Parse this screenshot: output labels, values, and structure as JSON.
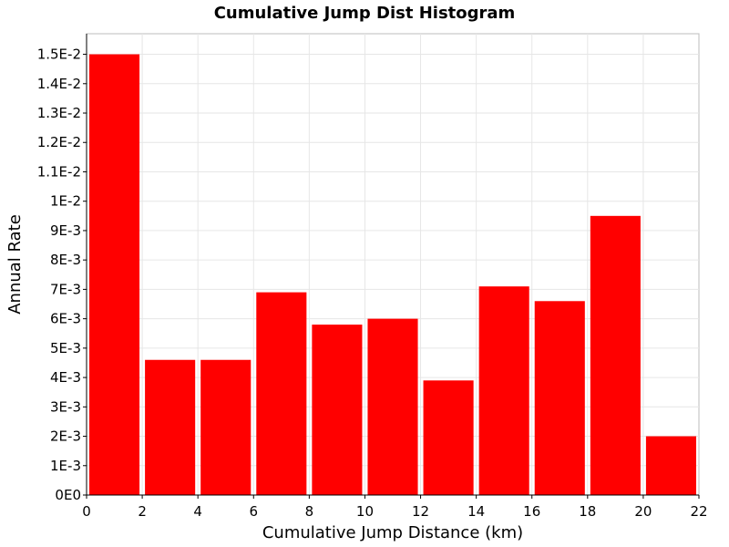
{
  "chart_data": {
    "type": "bar",
    "title": "Cumulative Jump Dist Histogram",
    "xlabel": "Cumulative Jump Distance (km)",
    "ylabel": "Annual Rate",
    "bin_width": 2,
    "x": [
      1,
      3,
      5,
      7,
      9,
      11,
      13,
      15,
      17,
      19,
      21
    ],
    "values": [
      0.015,
      0.0046,
      0.0046,
      0.0069,
      0.0058,
      0.006,
      0.0039,
      0.0071,
      0.0066,
      0.0095,
      0.002
    ],
    "xlim": [
      0,
      22
    ],
    "ylim": [
      0,
      0.0157
    ],
    "x_ticks": [
      0,
      2,
      4,
      6,
      8,
      10,
      12,
      14,
      16,
      18,
      20,
      22
    ],
    "y_ticks": [
      0,
      0.001,
      0.002,
      0.003,
      0.004,
      0.005,
      0.006,
      0.007,
      0.008,
      0.009,
      0.01,
      0.011,
      0.012,
      0.013,
      0.014,
      0.015
    ],
    "y_tick_labels": [
      "0E0",
      "1E-3",
      "2E-3",
      "3E-3",
      "4E-3",
      "5E-3",
      "6E-3",
      "7E-3",
      "8E-3",
      "9E-3",
      "1E-2",
      "1.1E-2",
      "1.2E-2",
      "1.3E-2",
      "1.4E-2",
      "1.5E-2"
    ],
    "bar_color": "#ff0000",
    "grid": true,
    "legend": "none"
  }
}
